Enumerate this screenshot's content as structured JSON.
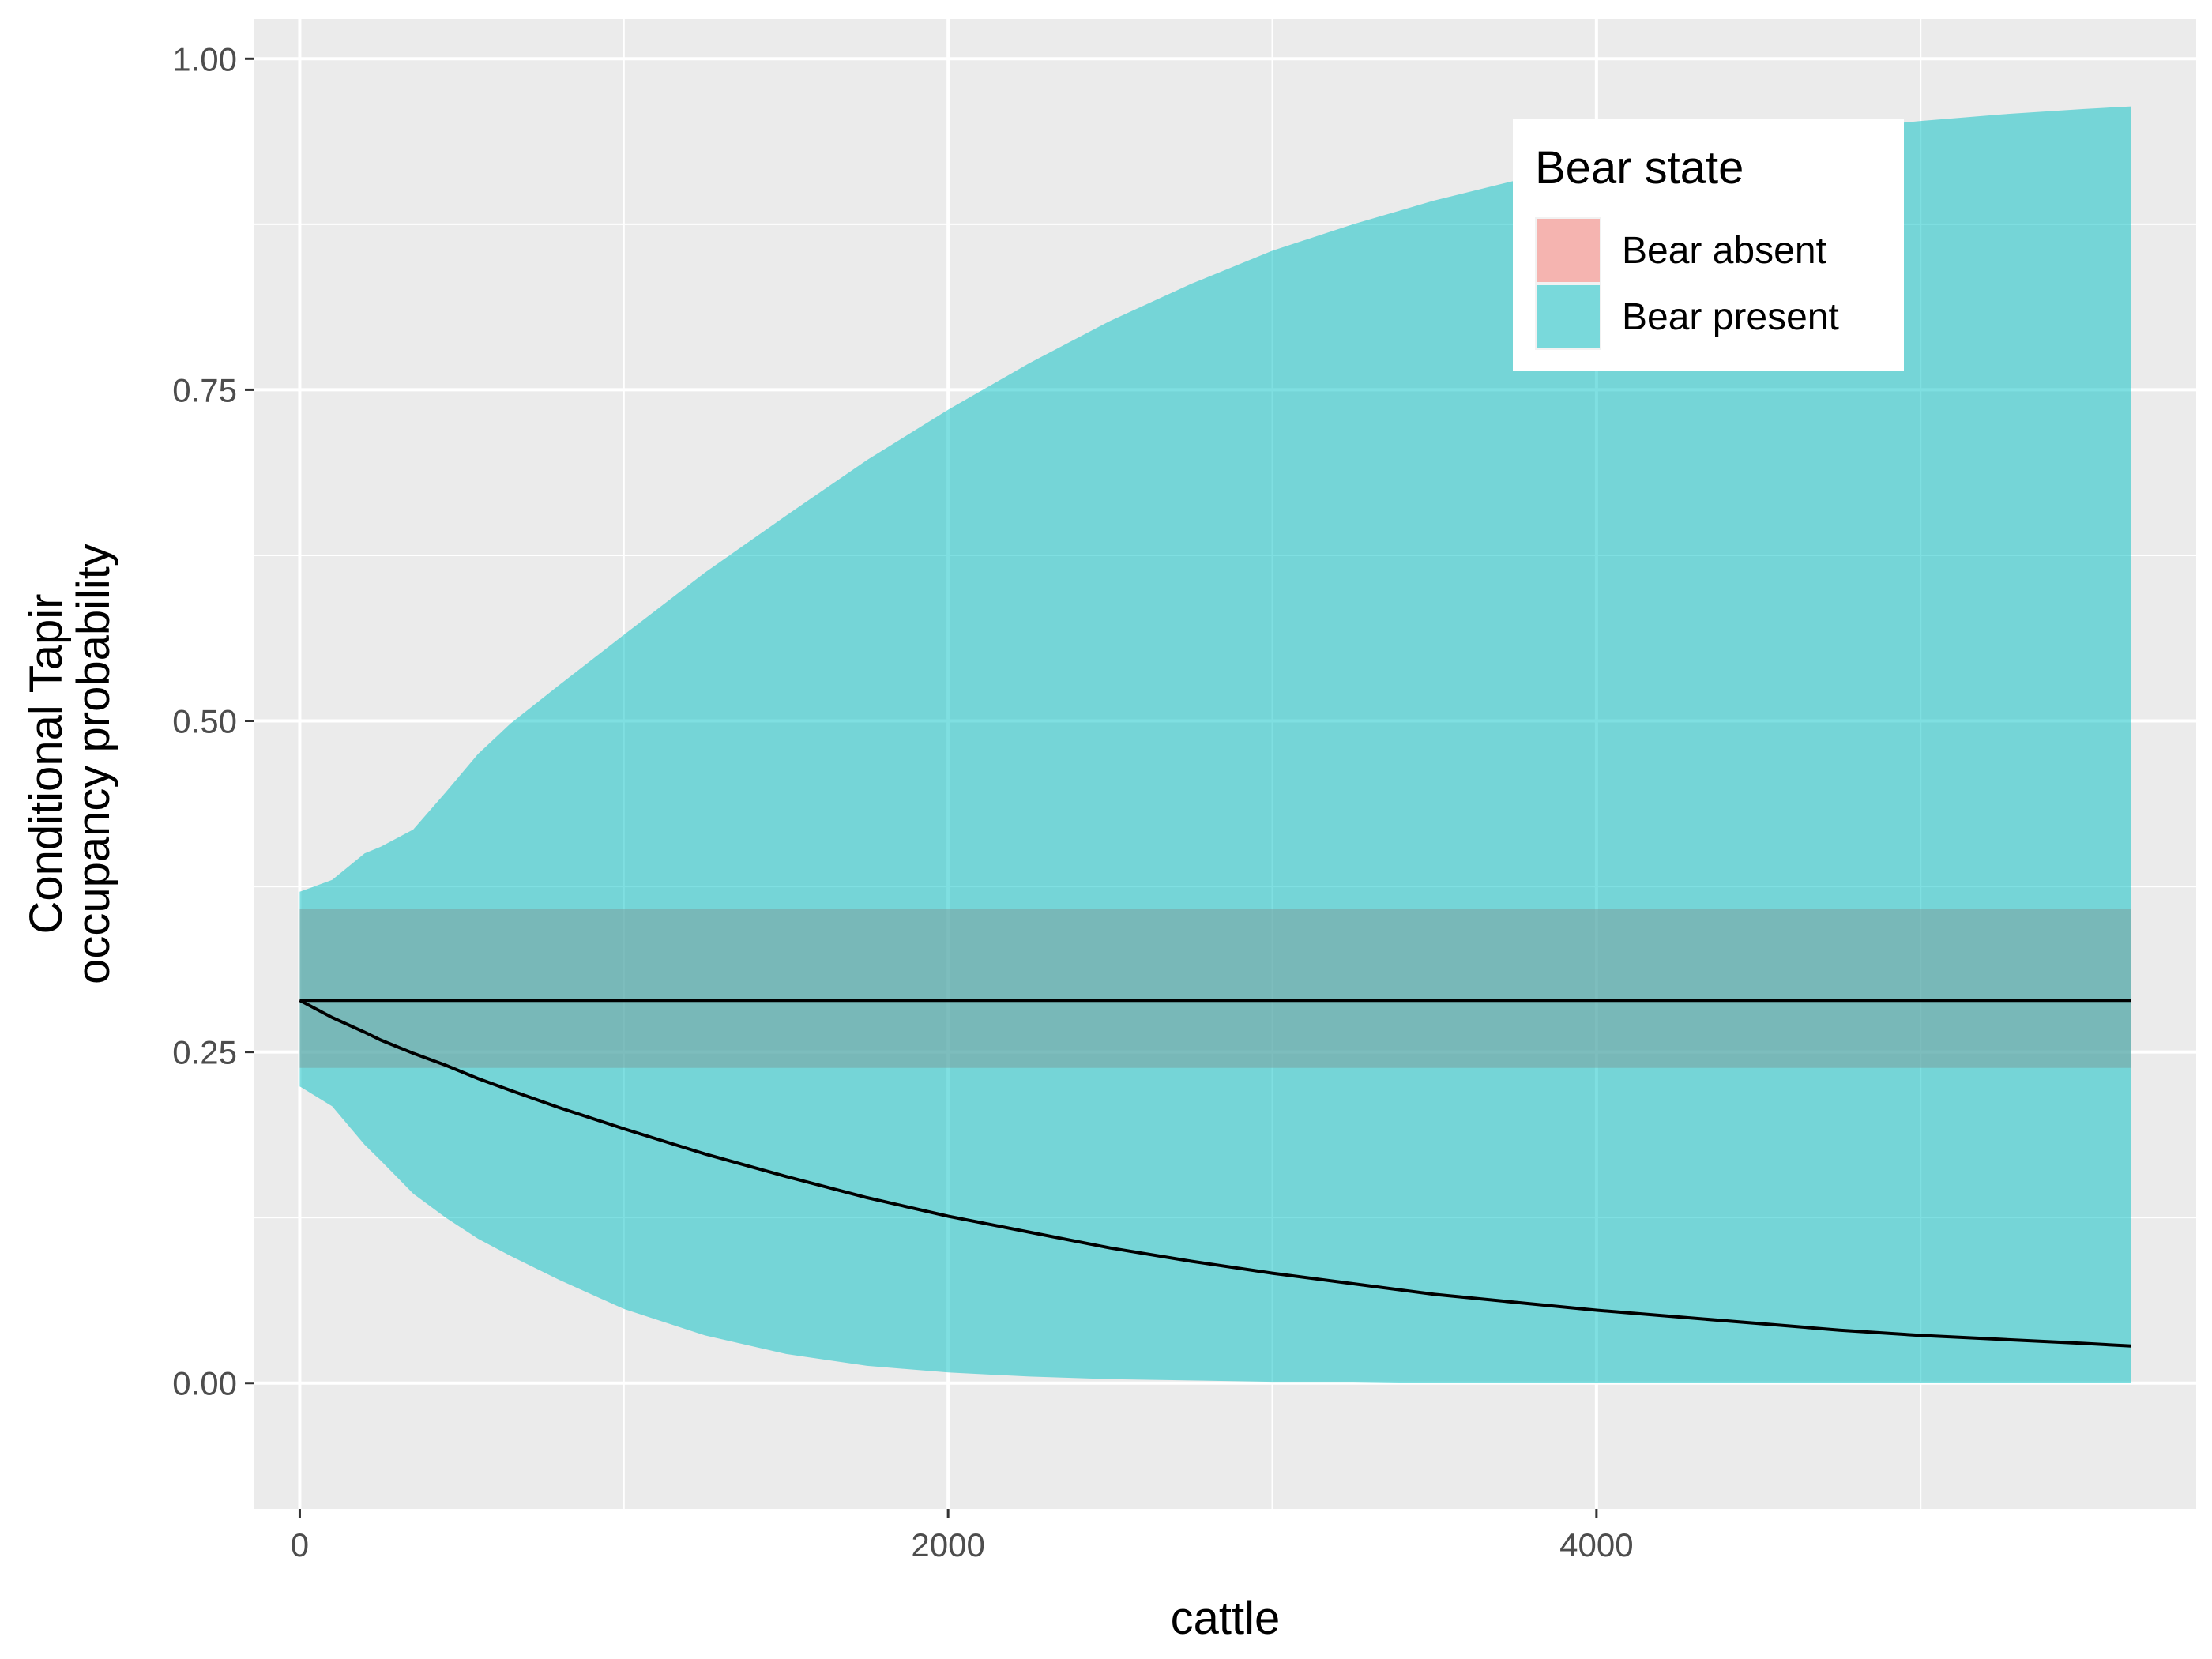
{
  "chart_data": {
    "type": "area",
    "title": "",
    "xlabel": "cattle",
    "ylabel": [
      "Conditional Tapir",
      "occupancy probability"
    ],
    "xlim": [
      -140,
      5850
    ],
    "ylim": [
      -0.095,
      1.03
    ],
    "x_ticks": [
      0,
      2000,
      4000
    ],
    "x_tick_labels": [
      "0",
      "2000",
      "4000"
    ],
    "x_minor_grid": [
      1000,
      3000,
      5000
    ],
    "y_ticks": [
      0.0,
      0.25,
      0.5,
      0.75,
      1.0
    ],
    "y_tick_labels": [
      "0.00",
      "0.25",
      "0.50",
      "0.75",
      "1.00"
    ],
    "y_minor_grid": [
      0.125,
      0.375,
      0.625,
      0.875
    ],
    "grid": true,
    "legend": {
      "title": "Bear state",
      "position": "top-right",
      "entries": [
        {
          "label": "Bear absent",
          "color": "#F8766D"
        },
        {
          "label": "Bear present",
          "color": "#00BFC4"
        }
      ]
    },
    "series": [
      {
        "name": "Bear absent",
        "color": "#F8766D",
        "x": [
          0,
          5650
        ],
        "estimate": [
          0.289,
          0.289
        ],
        "lower": [
          0.238,
          0.238
        ],
        "upper": [
          0.358,
          0.358
        ]
      },
      {
        "name": "Bear present",
        "color": "#00BFC4",
        "x": [
          0,
          100,
          200,
          250,
          350,
          450,
          550,
          650,
          800,
          1000,
          1250,
          1500,
          1750,
          2000,
          2250,
          2500,
          2750,
          3000,
          3250,
          3500,
          3750,
          4000,
          4250,
          4500,
          4750,
          5000,
          5250,
          5500,
          5650
        ],
        "estimate": [
          0.289,
          0.276,
          0.265,
          0.259,
          0.249,
          0.24,
          0.23,
          0.221,
          0.208,
          0.192,
          0.173,
          0.156,
          0.14,
          0.126,
          0.114,
          0.102,
          0.092,
          0.083,
          0.075,
          0.067,
          0.061,
          0.055,
          0.05,
          0.045,
          0.04,
          0.036,
          0.033,
          0.03,
          0.028
        ],
        "lower": [
          0.224,
          0.209,
          0.18,
          0.168,
          0.143,
          0.125,
          0.109,
          0.096,
          0.078,
          0.056,
          0.036,
          0.022,
          0.013,
          0.008,
          0.005,
          0.003,
          0.002,
          0.001,
          0.001,
          0.0,
          0.0,
          0.0,
          0.0,
          0.0,
          0.0,
          0.0,
          0.0,
          0.0,
          0.0
        ],
        "upper": [
          0.371,
          0.38,
          0.4,
          0.405,
          0.418,
          0.446,
          0.475,
          0.498,
          0.527,
          0.565,
          0.612,
          0.655,
          0.697,
          0.735,
          0.77,
          0.802,
          0.83,
          0.855,
          0.875,
          0.893,
          0.908,
          0.92,
          0.93,
          0.939,
          0.947,
          0.953,
          0.958,
          0.962,
          0.964
        ]
      }
    ]
  }
}
